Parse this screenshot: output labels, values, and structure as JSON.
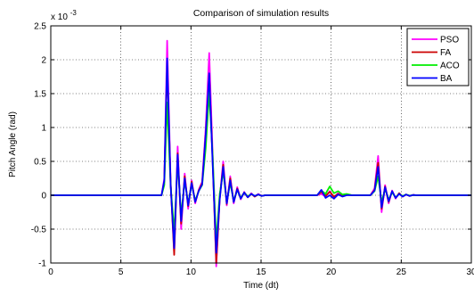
{
  "chart_data": {
    "type": "line",
    "title": "Comparison of simulation results",
    "xlabel": "Time (dt)",
    "ylabel": "Pitch Angle (rad)",
    "y_exponent_label": "x 10",
    "y_exponent_power": "-3",
    "xlim": [
      0,
      30
    ],
    "ylim": [
      -1,
      2.5
    ],
    "x_ticks": [
      0,
      5,
      10,
      15,
      20,
      25,
      30
    ],
    "x_tick_labels": [
      "0",
      "5",
      "10",
      "15",
      "20",
      "25",
      "30"
    ],
    "y_ticks": [
      -1,
      -0.5,
      0,
      0.5,
      1,
      1.5,
      2,
      2.5
    ],
    "y_tick_labels": [
      "-1",
      "-0.5",
      "0",
      "0.5",
      "1",
      "1.5",
      "2",
      "2.5"
    ],
    "grid": "dotted",
    "legend_position": "top-right",
    "series": [
      {
        "name": "PSO",
        "color": "#ff00ff",
        "x": [
          0,
          7.9,
          8.1,
          8.3,
          8.55,
          8.8,
          9.05,
          9.3,
          9.55,
          9.8,
          10.05,
          10.3,
          10.55,
          10.8,
          11.05,
          11.3,
          11.55,
          11.8,
          12.05,
          12.3,
          12.55,
          12.8,
          13.05,
          13.3,
          13.55,
          13.8,
          14.05,
          14.3,
          14.55,
          14.8,
          15.05,
          15.3,
          15.6,
          19,
          19.3,
          19.6,
          19.9,
          20.2,
          20.5,
          20.8,
          21.1,
          21.5,
          22.8,
          23.1,
          23.35,
          23.6,
          23.85,
          24.1,
          24.35,
          24.6,
          24.85,
          25.1,
          25.35,
          25.6,
          25.85,
          26.1,
          26.5,
          30
        ],
        "y": [
          0,
          0,
          0.25,
          2.28,
          0.2,
          -0.85,
          0.72,
          -0.5,
          0.32,
          -0.2,
          0.22,
          -0.12,
          0.08,
          0.2,
          1.0,
          2.1,
          0.6,
          -1.05,
          -0.05,
          0.5,
          -0.15,
          0.28,
          -0.12,
          0.12,
          -0.06,
          0.05,
          -0.03,
          0.03,
          -0.02,
          0.02,
          -0.01,
          0,
          0,
          0,
          0.02,
          -0.02,
          0.06,
          -0.03,
          0.03,
          -0.01,
          0.01,
          0,
          0,
          0.1,
          0.58,
          -0.25,
          0.15,
          -0.12,
          0.07,
          -0.05,
          0.03,
          -0.02,
          0.01,
          -0.01,
          0.005,
          0,
          0,
          0
        ]
      },
      {
        "name": "FA",
        "color": "#cc0000",
        "x": [
          0,
          7.9,
          8.1,
          8.3,
          8.55,
          8.8,
          9.05,
          9.3,
          9.55,
          9.8,
          10.05,
          10.3,
          10.55,
          10.8,
          11.05,
          11.3,
          11.55,
          11.8,
          12.05,
          12.3,
          12.55,
          12.8,
          13.05,
          13.3,
          13.55,
          13.8,
          14.05,
          14.3,
          14.55,
          14.8,
          15.05,
          15.3,
          15.6,
          19,
          19.3,
          19.6,
          19.9,
          20.2,
          20.5,
          20.8,
          21.1,
          21.5,
          22.8,
          23.1,
          23.35,
          23.6,
          23.85,
          24.1,
          24.35,
          24.6,
          24.85,
          25.1,
          25.35,
          25.6,
          25.85,
          26.1,
          26.5,
          30
        ],
        "y": [
          0,
          0,
          0.2,
          1.95,
          0.18,
          -0.88,
          0.62,
          -0.42,
          0.28,
          -0.16,
          0.2,
          -0.1,
          0.07,
          0.18,
          0.9,
          1.78,
          0.5,
          -1.0,
          -0.04,
          0.45,
          -0.13,
          0.25,
          -0.1,
          0.1,
          -0.05,
          0.04,
          -0.03,
          0.02,
          -0.02,
          0.01,
          -0.01,
          0,
          0,
          0,
          0.05,
          -0.01,
          0.05,
          -0.02,
          0.02,
          -0.01,
          0.01,
          0,
          0,
          0.08,
          0.48,
          -0.2,
          0.13,
          -0.1,
          0.06,
          -0.04,
          0.03,
          -0.02,
          0.01,
          -0.01,
          0.005,
          0,
          0,
          0
        ]
      },
      {
        "name": "ACO",
        "color": "#00ee00",
        "x": [
          0,
          7.9,
          8.1,
          8.3,
          8.55,
          8.8,
          9.05,
          9.3,
          9.55,
          9.8,
          10.05,
          10.3,
          10.55,
          10.8,
          11.05,
          11.3,
          11.55,
          11.8,
          12.05,
          12.3,
          12.55,
          12.8,
          13.05,
          13.3,
          13.55,
          13.8,
          14.05,
          14.3,
          14.55,
          14.8,
          15.05,
          15.3,
          15.6,
          19,
          19.3,
          19.6,
          19.9,
          20.2,
          20.5,
          20.8,
          21.1,
          21.5,
          22.8,
          23.1,
          23.35,
          23.6,
          23.85,
          24.1,
          24.35,
          24.6,
          24.85,
          25.1,
          25.35,
          25.6,
          25.85,
          26.1,
          26.5,
          30
        ],
        "y": [
          0,
          0,
          0.15,
          1.37,
          0.15,
          -0.55,
          0.5,
          -0.3,
          0.22,
          -0.12,
          0.16,
          -0.08,
          0.06,
          0.15,
          0.7,
          1.52,
          0.58,
          -0.7,
          0.02,
          0.35,
          -0.1,
          0.18,
          -0.08,
          0.08,
          -0.04,
          0.04,
          -0.02,
          0.02,
          -0.01,
          0.01,
          -0.01,
          0,
          0,
          0,
          0.07,
          0.02,
          0.13,
          0.03,
          0.06,
          0.01,
          0.02,
          0,
          0,
          0.06,
          0.28,
          -0.1,
          0.09,
          -0.06,
          0.04,
          -0.03,
          0.02,
          -0.01,
          0.01,
          -0.005,
          0.003,
          0,
          0,
          0
        ]
      },
      {
        "name": "BA",
        "color": "#0000ff",
        "x": [
          0,
          7.9,
          8.1,
          8.3,
          8.55,
          8.8,
          9.05,
          9.3,
          9.55,
          9.8,
          10.05,
          10.3,
          10.55,
          10.8,
          11.05,
          11.3,
          11.55,
          11.8,
          12.05,
          12.3,
          12.55,
          12.8,
          13.05,
          13.3,
          13.55,
          13.8,
          14.05,
          14.3,
          14.55,
          14.8,
          15.05,
          15.3,
          15.6,
          19,
          19.3,
          19.6,
          19.9,
          20.2,
          20.5,
          20.8,
          21.1,
          21.5,
          22.8,
          23.1,
          23.35,
          23.6,
          23.85,
          24.1,
          24.35,
          24.6,
          24.85,
          25.1,
          25.35,
          25.6,
          25.85,
          26.1,
          26.5,
          30
        ],
        "y": [
          0,
          0,
          0.22,
          2.02,
          0.15,
          -0.78,
          0.6,
          -0.38,
          0.25,
          -0.15,
          0.18,
          -0.1,
          0.06,
          0.16,
          0.9,
          1.8,
          0.45,
          -0.85,
          -0.06,
          0.42,
          -0.12,
          0.22,
          -0.1,
          0.09,
          -0.05,
          0.04,
          -0.03,
          0.02,
          -0.01,
          0.01,
          -0.01,
          0,
          0,
          0,
          0.08,
          -0.04,
          0.0,
          -0.05,
          0.01,
          -0.02,
          0.0,
          0,
          0,
          0.07,
          0.42,
          -0.18,
          0.12,
          -0.09,
          0.06,
          -0.04,
          0.02,
          -0.02,
          0.01,
          -0.01,
          0.004,
          0,
          0,
          0
        ]
      }
    ]
  }
}
